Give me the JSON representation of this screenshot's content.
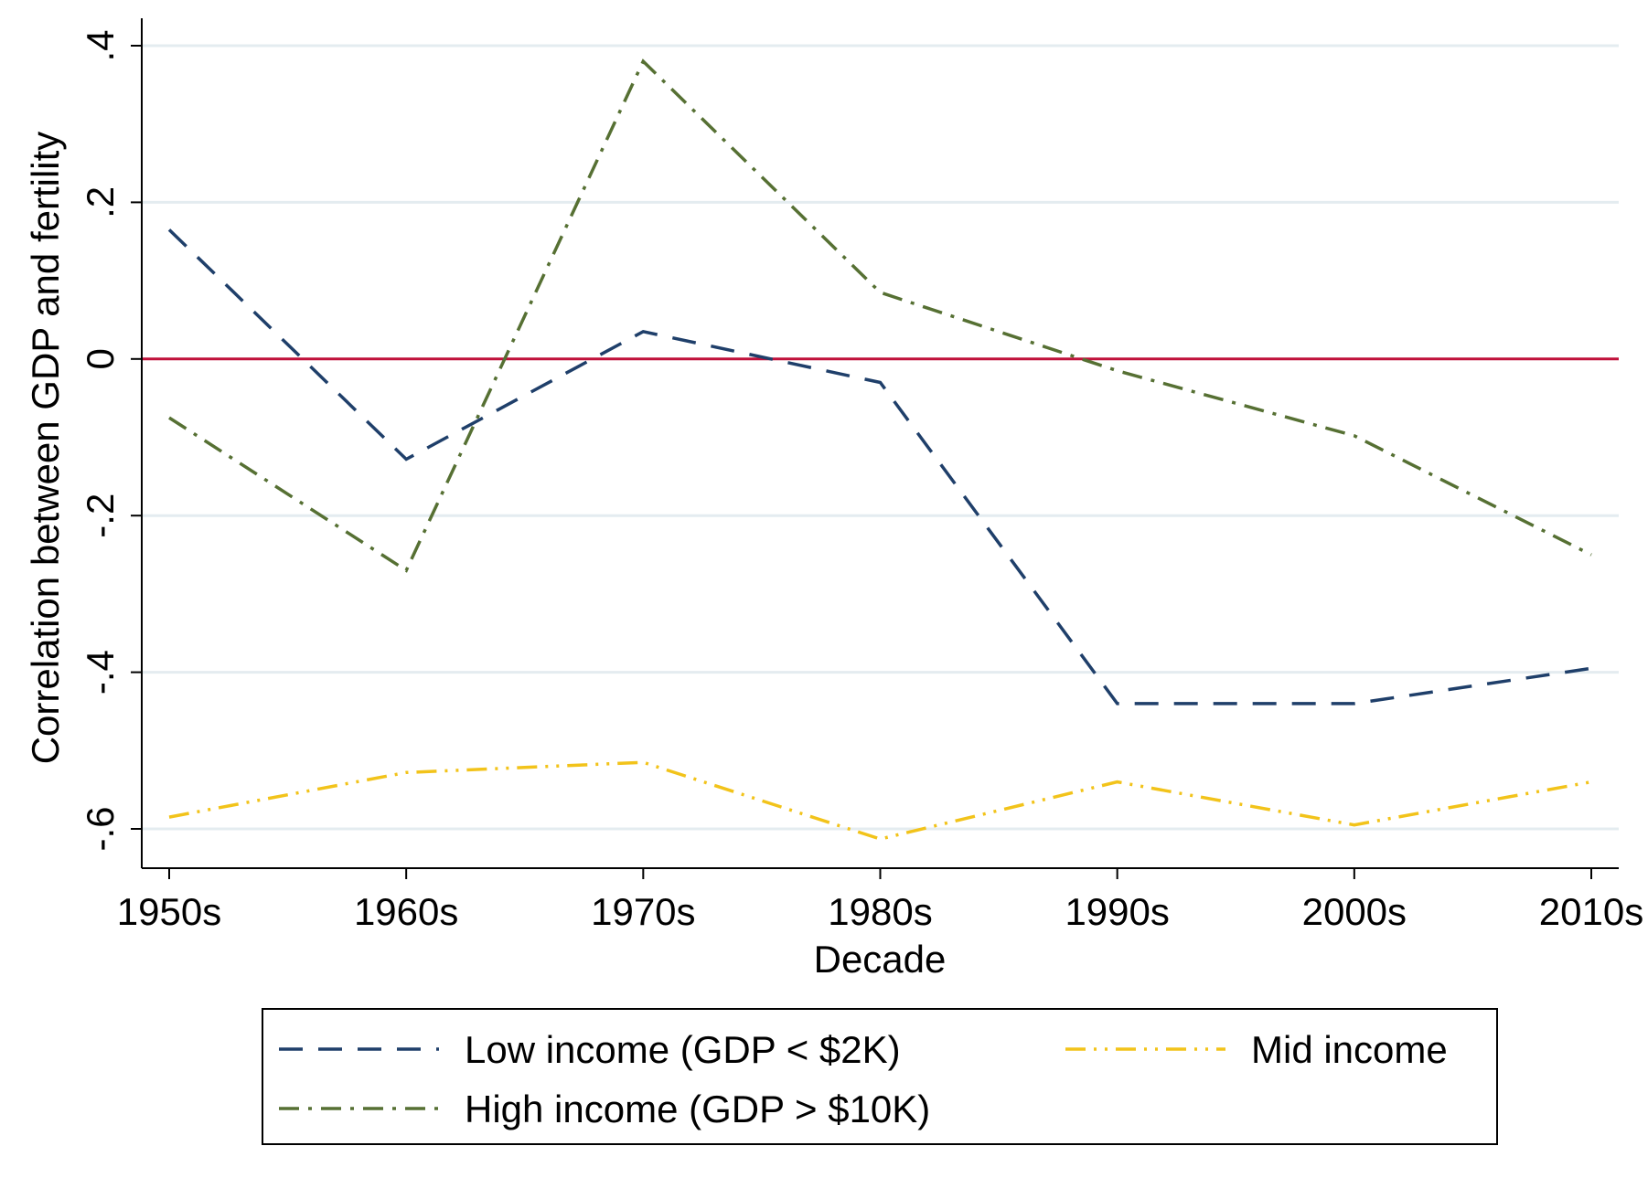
{
  "chart_data": {
    "type": "line",
    "title": "",
    "xlabel": "Decade",
    "ylabel": "Correlation between GDP and fertility",
    "categories": [
      "1950s",
      "1960s",
      "1970s",
      "1980s",
      "1990s",
      "2000s",
      "2010s"
    ],
    "ylim": [
      -0.65,
      0.4
    ],
    "yticks": [
      0.4,
      0.2,
      0,
      -0.2,
      -0.4,
      -0.6
    ],
    "ytick_labels": [
      ".4",
      ".2",
      "0",
      "-.2",
      "-.4",
      "-.6"
    ],
    "grid": true,
    "reference_line": {
      "y": 0,
      "color": "#c0103a"
    },
    "legend_position": "bottom",
    "series": [
      {
        "name": "Low income (GDP < $2K)",
        "color": "#1f3f6a",
        "dash": "dashed",
        "values": [
          0.165,
          -0.128,
          0.035,
          -0.03,
          -0.44,
          -0.44,
          -0.395
        ]
      },
      {
        "name": "High income (GDP > $10K)",
        "color": "#567033",
        "dash": "dashdot",
        "values": [
          -0.075,
          -0.27,
          0.38,
          0.085,
          -0.015,
          -0.098,
          -0.25
        ]
      },
      {
        "name": "Mid income",
        "color": "#f2c31a",
        "dash": "dashdotdot",
        "values": [
          -0.585,
          -0.528,
          -0.515,
          -0.613,
          -0.54,
          -0.595,
          -0.54
        ]
      }
    ]
  }
}
